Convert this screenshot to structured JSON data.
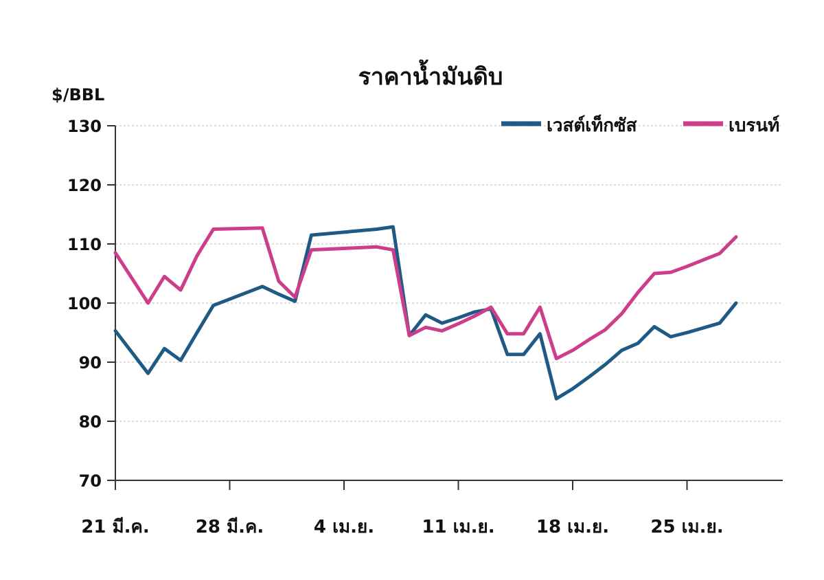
{
  "chart_data": {
    "type": "line",
    "title": "ราคาน้ำมันดิบ",
    "ylabel": "$/BBL",
    "ylim": [
      70,
      130
    ],
    "yticks": [
      70,
      80,
      90,
      100,
      110,
      120,
      130
    ],
    "xticks": [
      "21 มี.ค.",
      "28 มี.ค.",
      "4 เม.ย.",
      "11 เม.ย.",
      "18 เม.ย.",
      "25 เม.ย."
    ],
    "legend_position": "top-right",
    "grid": "horizontal dashed",
    "x": [
      0,
      2,
      3,
      4,
      5,
      6,
      9,
      10,
      11,
      12,
      16,
      17,
      18,
      19,
      20,
      21,
      22,
      23,
      24,
      25,
      26,
      27,
      28,
      29,
      30,
      31,
      32,
      33,
      34,
      35,
      36,
      37,
      38
    ],
    "series": [
      {
        "name": "เวสต์เท็กซัส",
        "color": "#1f5a85",
        "values": [
          95.3,
          88.1,
          92.3,
          90.3,
          95.0,
          99.6,
          102.8,
          101.5,
          100.3,
          111.5,
          112.5,
          112.9,
          94.5,
          98.0,
          96.6,
          97.5,
          98.5,
          99.0,
          91.3,
          91.3,
          94.8,
          83.8,
          85.5,
          87.5,
          89.6,
          92.0,
          93.2,
          96.0,
          94.3,
          95.0,
          95.8,
          96.6,
          100.0
        ]
      },
      {
        "name": "เบรนท์",
        "color": "#cc3d8a",
        "values": [
          108.5,
          100.0,
          104.5,
          102.2,
          108.0,
          112.5,
          112.7,
          103.7,
          101.0,
          109.0,
          109.5,
          109.0,
          94.5,
          95.9,
          95.3,
          96.5,
          97.8,
          99.3,
          94.8,
          94.8,
          99.3,
          90.6,
          92.0,
          93.8,
          95.5,
          98.2,
          101.8,
          105.0,
          105.2,
          106.2,
          107.3,
          108.4,
          111.2
        ]
      }
    ]
  }
}
